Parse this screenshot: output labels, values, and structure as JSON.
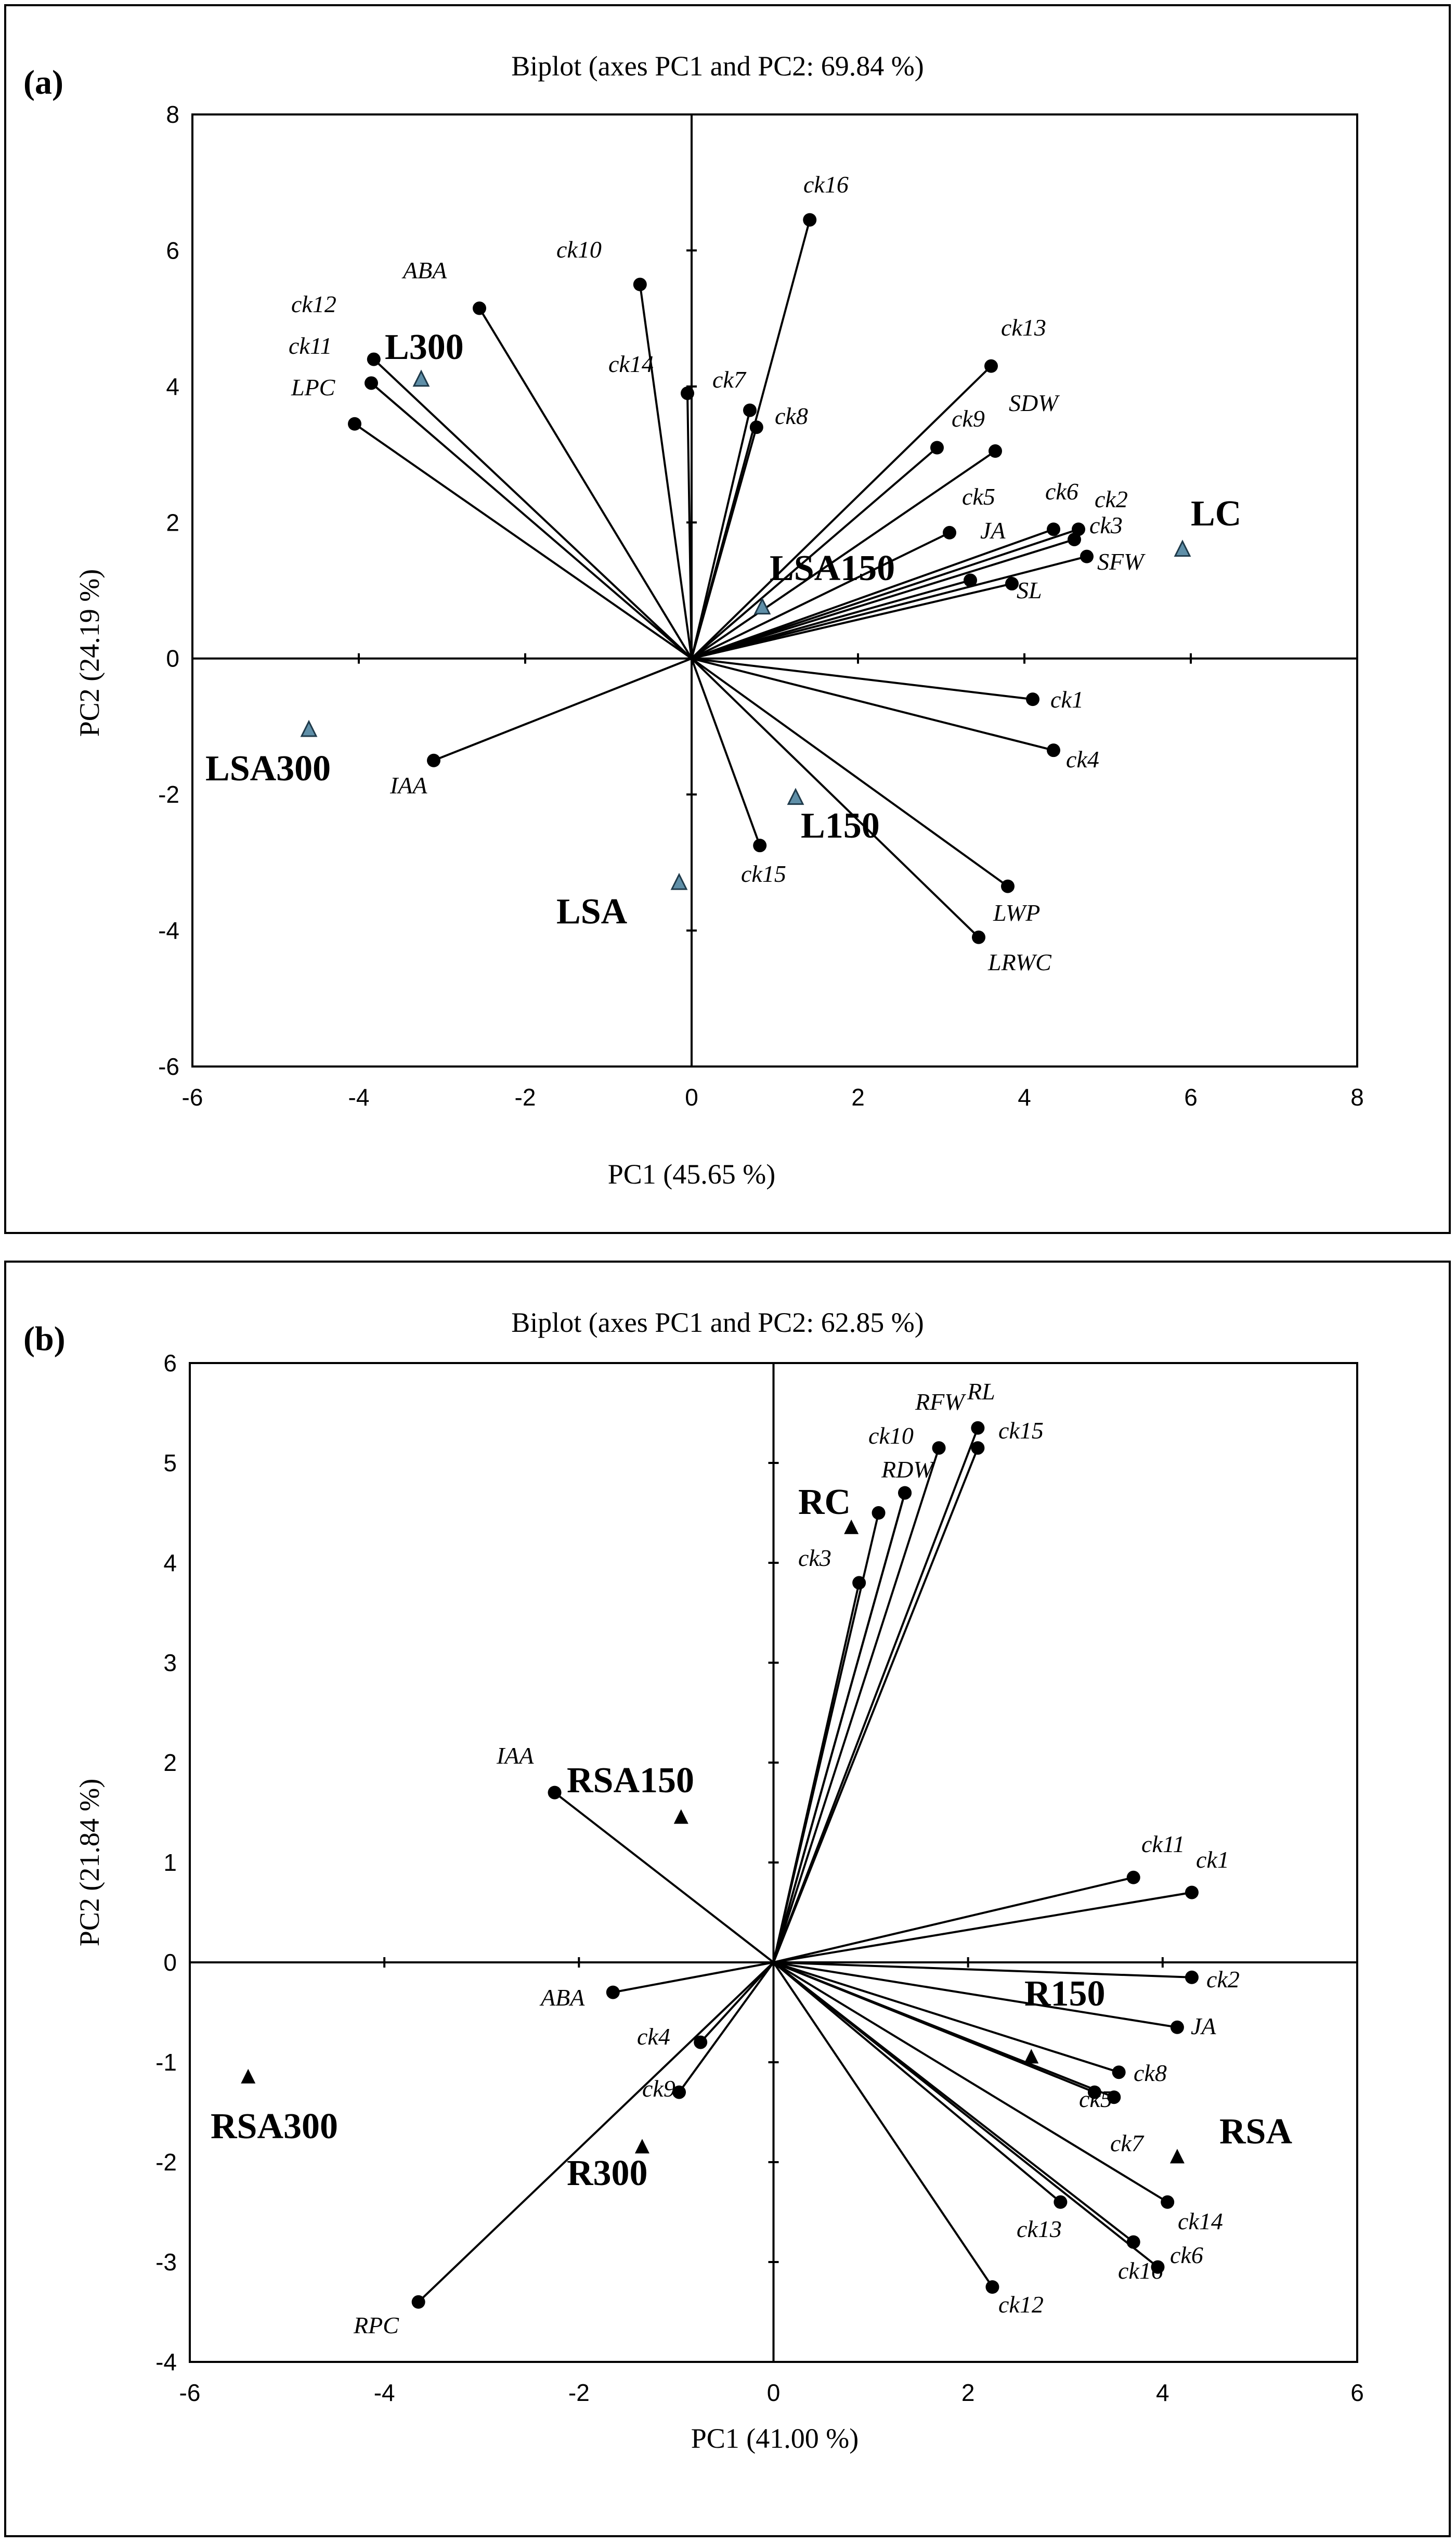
{
  "chart_data": [
    {
      "type": "scatter",
      "panel_label": "(a)",
      "title": "Biplot (axes PC1 and PC2: 69.84 %)",
      "xlabel": "PC1 (45.65 %)",
      "ylabel": "PC2 (24.19 %)",
      "xlim": [
        -6,
        8
      ],
      "ylim": [
        -6,
        8
      ],
      "xticks": [
        -6,
        -4,
        -2,
        0,
        2,
        4,
        6,
        8
      ],
      "yticks": [
        -6,
        -4,
        -2,
        0,
        2,
        4,
        6,
        8
      ],
      "variables": [
        {
          "name": "ck16",
          "x": 1.42,
          "y": 6.45
        },
        {
          "name": "ABA",
          "x": -2.55,
          "y": 5.15
        },
        {
          "name": "ck10",
          "x": -0.62,
          "y": 5.5
        },
        {
          "name": "ck12",
          "x": -3.82,
          "y": 4.4
        },
        {
          "name": "ck11",
          "x": -3.85,
          "y": 4.05
        },
        {
          "name": "LPC",
          "x": -4.05,
          "y": 3.45
        },
        {
          "name": "ck14",
          "x": -0.05,
          "y": 3.9
        },
        {
          "name": "ck7",
          "x": 0.7,
          "y": 3.65
        },
        {
          "name": "ck8",
          "x": 0.78,
          "y": 3.4
        },
        {
          "name": "ck13",
          "x": 3.6,
          "y": 4.3
        },
        {
          "name": "SDW",
          "x": 3.65,
          "y": 3.05
        },
        {
          "name": "ck9",
          "x": 2.95,
          "y": 3.1
        },
        {
          "name": "ck5",
          "x": 3.1,
          "y": 1.85
        },
        {
          "name": "ck6",
          "x": 4.35,
          "y": 1.9
        },
        {
          "name": "ck2",
          "x": 4.65,
          "y": 1.9
        },
        {
          "name": "ck3",
          "x": 4.6,
          "y": 1.75
        },
        {
          "name": "JA",
          "x": 3.35,
          "y": 1.15
        },
        {
          "name": "SFW",
          "x": 4.75,
          "y": 1.5
        },
        {
          "name": "SL",
          "x": 3.85,
          "y": 1.1
        },
        {
          "name": "ck1",
          "x": 4.1,
          "y": -0.6
        },
        {
          "name": "ck4",
          "x": 4.35,
          "y": -1.35
        },
        {
          "name": "IAA",
          "x": -3.1,
          "y": -1.5
        },
        {
          "name": "ck15",
          "x": 0.82,
          "y": -2.75
        },
        {
          "name": "LWP",
          "x": 3.8,
          "y": -3.35
        },
        {
          "name": "LRWC",
          "x": 3.45,
          "y": -4.1
        }
      ],
      "observations": [
        {
          "name": "L300",
          "x": -3.25,
          "y": 4.1
        },
        {
          "name": "LC",
          "x": 5.9,
          "y": 1.6
        },
        {
          "name": "LSA150",
          "x": 0.85,
          "y": 0.75
        },
        {
          "name": "LSA300",
          "x": -4.6,
          "y": -1.05
        },
        {
          "name": "L150",
          "x": 1.25,
          "y": -2.05
        },
        {
          "name": "LSA",
          "x": -0.15,
          "y": -3.3
        }
      ]
    },
    {
      "type": "scatter",
      "panel_label": "(b)",
      "title": "Biplot (axes PC1 and PC2: 62.85 %)",
      "xlabel": "PC1 (41.00 %)",
      "ylabel": "PC2 (21.84 %)",
      "xlim": [
        -6,
        6
      ],
      "ylim": [
        -4,
        6
      ],
      "xticks": [
        -6,
        -4,
        -2,
        0,
        2,
        4,
        6
      ],
      "yticks": [
        -4,
        -3,
        -2,
        -1,
        0,
        1,
        2,
        3,
        4,
        5,
        6
      ],
      "variables": [
        {
          "name": "RL",
          "x": 2.1,
          "y": 5.35
        },
        {
          "name": "RFW",
          "x": 1.7,
          "y": 5.15
        },
        {
          "name": "ck15",
          "x": 2.1,
          "y": 5.15
        },
        {
          "name": "ck10",
          "x": 1.35,
          "y": 4.7
        },
        {
          "name": "RDW",
          "x": 1.35,
          "y": 4.7
        },
        {
          "name": "ck3",
          "x": 1.08,
          "y": 4.5
        },
        {
          "name": "ck3_2",
          "x": 0.88,
          "y": 3.8
        },
        {
          "name": "IAA",
          "x": -2.25,
          "y": 1.7
        },
        {
          "name": "ck11",
          "x": 3.7,
          "y": 0.85
        },
        {
          "name": "ck1",
          "x": 4.3,
          "y": 0.7
        },
        {
          "name": "ck2",
          "x": 4.3,
          "y": -0.15
        },
        {
          "name": "JA",
          "x": 4.15,
          "y": -0.65
        },
        {
          "name": "ABA",
          "x": -1.65,
          "y": -0.3
        },
        {
          "name": "ck4",
          "x": -0.75,
          "y": -0.8
        },
        {
          "name": "ck9",
          "x": -0.97,
          "y": -1.3
        },
        {
          "name": "ck8",
          "x": 3.55,
          "y": -1.1
        },
        {
          "name": "ck5",
          "x": 3.3,
          "y": -1.3
        },
        {
          "name": "ck7",
          "x": 3.5,
          "y": -1.35
        },
        {
          "name": "ck13",
          "x": 2.95,
          "y": -2.4
        },
        {
          "name": "ck14",
          "x": 4.05,
          "y": -2.4
        },
        {
          "name": "ck16",
          "x": 3.7,
          "y": -2.8
        },
        {
          "name": "ck6",
          "x": 3.95,
          "y": -3.05
        },
        {
          "name": "ck12",
          "x": 2.25,
          "y": -3.25
        },
        {
          "name": "RPC",
          "x": -3.65,
          "y": -3.4
        }
      ],
      "observations": [
        {
          "name": "RC",
          "x": 0.8,
          "y": 4.35
        },
        {
          "name": "RSA150",
          "x": -0.95,
          "y": 1.45
        },
        {
          "name": "R150",
          "x": 2.65,
          "y": -0.95
        },
        {
          "name": "RSA",
          "x": 4.15,
          "y": -1.95
        },
        {
          "name": "RSA300",
          "x": -5.4,
          "y": -1.15
        },
        {
          "name": "R300",
          "x": -1.35,
          "y": -1.85
        }
      ]
    }
  ],
  "labels": {
    "a": {
      "ck16": "ck16",
      "ABA": "ABA",
      "ck10": "ck10",
      "ck12": "ck12",
      "ck11": "ck11",
      "LPC": "LPC",
      "ck14": "ck14",
      "ck7": "ck7",
      "ck8": "ck8",
      "ck13": "ck13",
      "SDW": "SDW",
      "ck9": "ck9",
      "ck5": "ck5",
      "ck6": "ck6",
      "ck2": "ck2",
      "ck3": "ck3",
      "JA": "JA",
      "SFW": "SFW",
      "SL": "SL",
      "ck1": "ck1",
      "ck4": "ck4",
      "IAA": "IAA",
      "ck15": "ck15",
      "LWP": "LWP",
      "LRWC": "LRWC",
      "L300": "L300",
      "LC": "LC",
      "LSA150": "LSA150",
      "LSA300": "LSA300",
      "L150": "L150",
      "LSA": "LSA"
    },
    "b": {
      "RL": "RL",
      "RFW": "RFW",
      "ck15": "ck15",
      "ck10": "ck10",
      "RDW": "RDW",
      "ck3": "ck3",
      "IAA": "IAA",
      "ck11": "ck11",
      "ck1": "ck1",
      "ck2": "ck2",
      "JA": "JA",
      "ABA": "ABA",
      "ck4": "ck4",
      "ck9": "ck9",
      "ck8": "ck8",
      "ck5": "ck5",
      "ck7": "ck7",
      "ck13": "ck13",
      "ck14": "ck14",
      "ck16": "ck16",
      "ck6": "ck6",
      "ck12": "ck12",
      "RPC": "RPC",
      "RC": "RC",
      "RSA150": "RSA150",
      "R150": "R150",
      "RSA": "RSA",
      "RSA300": "RSA300",
      "R300": "R300"
    }
  }
}
